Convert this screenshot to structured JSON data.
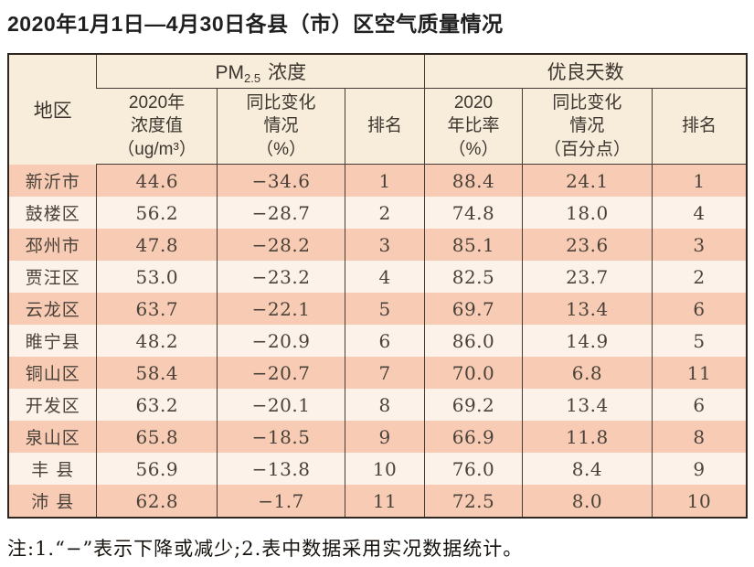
{
  "title": "2020年1月1日—4月30日各县（市）区空气质量情况",
  "table": {
    "region_header": "地区",
    "group_pm": {
      "prefix": "PM",
      "subscript": "2.5",
      "suffix": "浓度"
    },
    "group_days": "优良天数",
    "subheaders": {
      "pm_value": "2020年\n浓度值\n（ug/m³）",
      "pm_change": "同比变化\n情况\n（%）",
      "pm_rank": "排名",
      "days_ratio": "2020\n年比率\n（%）",
      "days_change": "同比变化\n情况\n（百分点）",
      "days_rank": "排名"
    },
    "rows": [
      {
        "region": "新沂市",
        "pm_value": "44.6",
        "pm_change": "−34.6",
        "pm_rank": "1",
        "days_ratio": "88.4",
        "days_change": "24.1",
        "days_rank": "1"
      },
      {
        "region": "鼓楼区",
        "pm_value": "56.2",
        "pm_change": "−28.7",
        "pm_rank": "2",
        "days_ratio": "74.8",
        "days_change": "18.0",
        "days_rank": "4"
      },
      {
        "region": "邳州市",
        "pm_value": "47.8",
        "pm_change": "−28.2",
        "pm_rank": "3",
        "days_ratio": "85.1",
        "days_change": "23.6",
        "days_rank": "3"
      },
      {
        "region": "贾汪区",
        "pm_value": "53.0",
        "pm_change": "−23.2",
        "pm_rank": "4",
        "days_ratio": "82.5",
        "days_change": "23.7",
        "days_rank": "2"
      },
      {
        "region": "云龙区",
        "pm_value": "63.7",
        "pm_change": "−22.1",
        "pm_rank": "5",
        "days_ratio": "69.7",
        "days_change": "13.4",
        "days_rank": "6"
      },
      {
        "region": "睢宁县",
        "pm_value": "48.2",
        "pm_change": "−20.9",
        "pm_rank": "6",
        "days_ratio": "86.0",
        "days_change": "14.9",
        "days_rank": "5"
      },
      {
        "region": "铜山区",
        "pm_value": "58.4",
        "pm_change": "−20.7",
        "pm_rank": "7",
        "days_ratio": "70.0",
        "days_change": "6.8",
        "days_rank": "11"
      },
      {
        "region": "开发区",
        "pm_value": "63.2",
        "pm_change": "−20.1",
        "pm_rank": "8",
        "days_ratio": "69.2",
        "days_change": "13.4",
        "days_rank": "6"
      },
      {
        "region": "泉山区",
        "pm_value": "65.8",
        "pm_change": "−18.5",
        "pm_rank": "9",
        "days_ratio": "66.9",
        "days_change": "11.8",
        "days_rank": "8"
      },
      {
        "region": "丰 县",
        "pm_value": "56.9",
        "pm_change": "−13.8",
        "pm_rank": "10",
        "days_ratio": "76.0",
        "days_change": "8.4",
        "days_rank": "9"
      },
      {
        "region": "沛 县",
        "pm_value": "62.8",
        "pm_change": "−1.7",
        "pm_rank": "11",
        "days_ratio": "72.5",
        "days_change": "8.0",
        "days_rank": "10"
      }
    ]
  },
  "note": "注:1.“−”表示下降或减少;2.表中数据采用实况数据统计。",
  "colors": {
    "row_odd_bg": "#f8ccb4",
    "row_even_bg": "#fdf2e9",
    "header_bg": "#f8ecdb",
    "border_dark": "#2e2620",
    "grid_line": "#453c35",
    "data_text": "#4a423a",
    "title_text": "#1f1f1f"
  },
  "chart_data": {
    "type": "table",
    "title": "2020年1月1日—4月30日各县（市）区空气质量情况",
    "columns": [
      "地区",
      "PM2.5浓度 2020年浓度值（ug/m³）",
      "PM2.5浓度 同比变化情况（%）",
      "PM2.5浓度 排名",
      "优良天数 2020年比率（%）",
      "优良天数 同比变化情况（百分点）",
      "优良天数 排名"
    ],
    "rows": [
      [
        "新沂市",
        44.6,
        -34.6,
        1,
        88.4,
        24.1,
        1
      ],
      [
        "鼓楼区",
        56.2,
        -28.7,
        2,
        74.8,
        18.0,
        4
      ],
      [
        "邳州市",
        47.8,
        -28.2,
        3,
        85.1,
        23.6,
        3
      ],
      [
        "贾汪区",
        53.0,
        -23.2,
        4,
        82.5,
        23.7,
        2
      ],
      [
        "云龙区",
        63.7,
        -22.1,
        5,
        69.7,
        13.4,
        6
      ],
      [
        "睢宁县",
        48.2,
        -20.9,
        6,
        86.0,
        14.9,
        5
      ],
      [
        "铜山区",
        58.4,
        -20.7,
        7,
        70.0,
        6.8,
        11
      ],
      [
        "开发区",
        63.2,
        -20.1,
        8,
        69.2,
        13.4,
        6
      ],
      [
        "泉山区",
        65.8,
        -18.5,
        9,
        66.9,
        11.8,
        8
      ],
      [
        "丰县",
        56.9,
        -13.8,
        10,
        76.0,
        8.4,
        9
      ],
      [
        "沛县",
        62.8,
        -1.7,
        11,
        72.5,
        8.0,
        10
      ]
    ],
    "note": "注:1.“−”表示下降或减少;2.表中数据采用实况数据统计。"
  }
}
